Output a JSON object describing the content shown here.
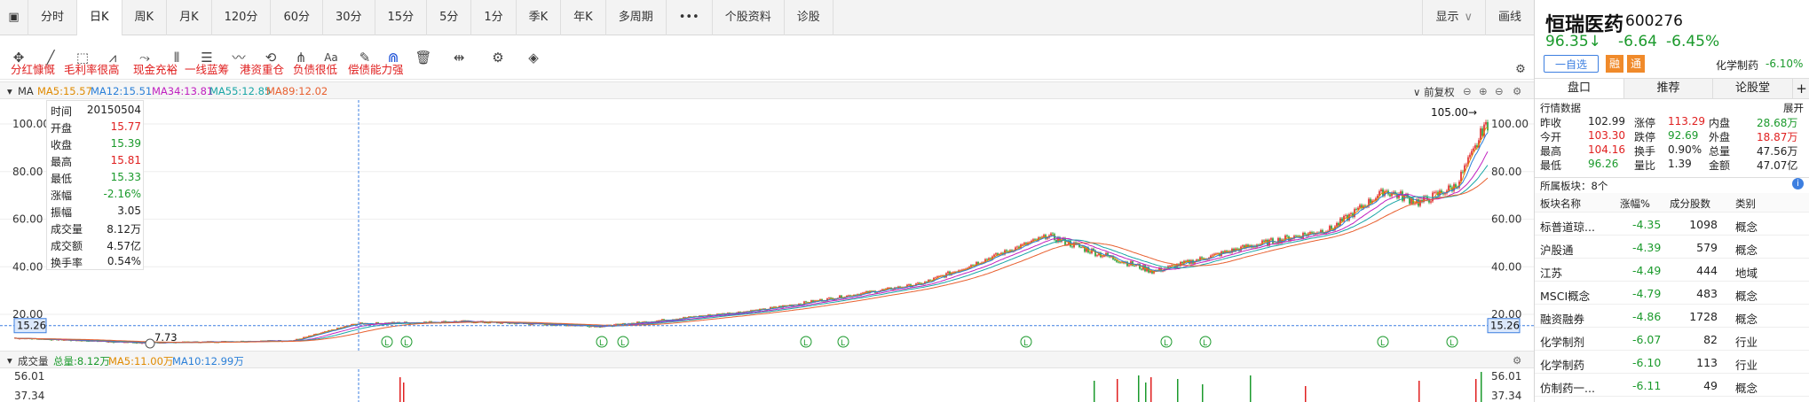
{
  "tabs": [
    "分时",
    "日K",
    "周K",
    "月K",
    "120分",
    "60分",
    "30分",
    "15分",
    "5分",
    "1分",
    "季K",
    "年K",
    "多周期",
    "•••",
    "个股资料",
    "诊股"
  ],
  "active_tab": "日K",
  "right_tabs": [
    "显示",
    "画线"
  ],
  "tags": [
    "分红慷慨",
    "毛利率很高",
    "现金充裕",
    "一线蓝筹",
    "港资重仓",
    "负债很低",
    "偿债能力强"
  ],
  "ma_label": "MA",
  "ma": [
    {
      "text": "MA5:15.57",
      "color": "#e08a00"
    },
    {
      "text": "MA12:15.51",
      "color": "#2a7fd8"
    },
    {
      "text": "MA34:13.81",
      "color": "#c020c0"
    },
    {
      "text": "MA55:12.85",
      "color": "#1aa6a6"
    },
    {
      "text": "MA89:12.02",
      "color": "#e86030"
    }
  ],
  "fq_label": "前复权",
  "tooltip": [
    {
      "label": "时间",
      "value": "20150504",
      "cls": ""
    },
    {
      "label": "开盘",
      "value": "15.77",
      "cls": "red"
    },
    {
      "label": "收盘",
      "value": "15.39",
      "cls": "green"
    },
    {
      "label": "最高",
      "value": "15.81",
      "cls": "red"
    },
    {
      "label": "最低",
      "value": "15.33",
      "cls": "green"
    },
    {
      "label": "涨幅",
      "value": "-2.16%",
      "cls": "green"
    },
    {
      "label": "振幅",
      "value": "3.05",
      "cls": ""
    },
    {
      "label": "成交量",
      "value": "8.12万",
      "cls": ""
    },
    {
      "label": "成交额",
      "value": "4.57亿",
      "cls": ""
    },
    {
      "label": "换手率",
      "value": "0.54%",
      "cls": ""
    }
  ],
  "y_axis": [
    "100.00",
    "80.00",
    "60.00",
    "40.00",
    "20.00"
  ],
  "cursor_price": "15.26",
  "high_marker": "105.00→",
  "low_marker": "7.73",
  "vol_label": "成交量",
  "vol_items": [
    {
      "text": "总量:8.12万",
      "color": "#1b9a2c"
    },
    {
      "text": "MA5:11.00万",
      "color": "#e08a00"
    },
    {
      "text": "MA10:12.99万",
      "color": "#2a7fd8"
    }
  ],
  "vol_axis": [
    "56.01",
    "37.34"
  ],
  "stock": {
    "name": "恒瑞医药",
    "code": "600276",
    "price": "96.35↓",
    "change": "-6.64",
    "pct": "-6.45%",
    "watch_btn": "一自选",
    "rong": "融",
    "tong": "通",
    "sector": "化学制药",
    "sector_pct": "-6.10%"
  },
  "panel_tabs": [
    "盘口",
    "推荐",
    "论股堂"
  ],
  "quote_title": "行情数据",
  "expand": "展开",
  "quote": [
    [
      "昨收",
      "102.99",
      "",
      "涨停",
      "113.29",
      "red",
      "内盘",
      "28.68万",
      "green"
    ],
    [
      "今开",
      "103.30",
      "red",
      "跌停",
      "92.69",
      "green",
      "外盘",
      "18.87万",
      "red"
    ],
    [
      "最高",
      "104.16",
      "red",
      "换手",
      "0.90%",
      "",
      "总量",
      "47.56万",
      ""
    ],
    [
      "最低",
      "96.26",
      "green",
      "量比",
      "1.39",
      "",
      "金额",
      "47.07亿",
      ""
    ]
  ],
  "board_title": "所属板块：8个",
  "board_headers": [
    "板块名称",
    "涨幅%",
    "成分股数",
    "类别"
  ],
  "boards": [
    [
      "标普道琼...",
      "-4.35",
      "1098",
      "概念"
    ],
    [
      "沪股通",
      "-4.39",
      "579",
      "概念"
    ],
    [
      "江苏",
      "-4.49",
      "444",
      "地域"
    ],
    [
      "MSCI概念",
      "-4.79",
      "483",
      "概念"
    ],
    [
      "融资融券",
      "-4.86",
      "1728",
      "概念"
    ],
    [
      "化学制剂",
      "-6.07",
      "82",
      "行业"
    ],
    [
      "化学制药",
      "-6.10",
      "113",
      "行业"
    ],
    [
      "仿制药一...",
      "-6.11",
      "49",
      "概念"
    ]
  ]
}
